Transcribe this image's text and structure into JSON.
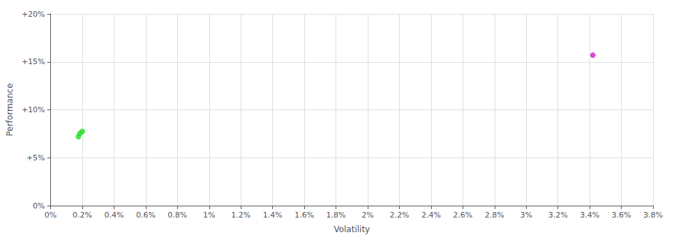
{
  "chart_data": {
    "type": "scatter",
    "xlabel": "Volatility",
    "ylabel": "Performance",
    "xlim": [
      0.0,
      0.038
    ],
    "ylim": [
      0.0,
      0.2
    ],
    "xticks": [
      {
        "value": 0.0,
        "label": "0%"
      },
      {
        "value": 0.002,
        "label": "0.2%"
      },
      {
        "value": 0.004,
        "label": "0.4%"
      },
      {
        "value": 0.006,
        "label": "0.6%"
      },
      {
        "value": 0.008,
        "label": "0.8%"
      },
      {
        "value": 0.01,
        "label": "1%"
      },
      {
        "value": 0.012,
        "label": "1.2%"
      },
      {
        "value": 0.014,
        "label": "1.4%"
      },
      {
        "value": 0.016,
        "label": "1.6%"
      },
      {
        "value": 0.018,
        "label": "1.8%"
      },
      {
        "value": 0.02,
        "label": "2%"
      },
      {
        "value": 0.022,
        "label": "2.2%"
      },
      {
        "value": 0.024,
        "label": "2.4%"
      },
      {
        "value": 0.026,
        "label": "2.6%"
      },
      {
        "value": 0.028,
        "label": "2.8%"
      },
      {
        "value": 0.03,
        "label": "3%"
      },
      {
        "value": 0.032,
        "label": "3.2%"
      },
      {
        "value": 0.034,
        "label": "3.4%"
      },
      {
        "value": 0.036,
        "label": "3.6%"
      },
      {
        "value": 0.038,
        "label": "3.8%"
      }
    ],
    "yticks": [
      {
        "value": 0.0,
        "label": "0%"
      },
      {
        "value": 0.05,
        "label": "+5%"
      },
      {
        "value": 0.1,
        "label": "+10%"
      },
      {
        "value": 0.15,
        "label": "+15%"
      },
      {
        "value": 0.2,
        "label": "+20%"
      }
    ],
    "grid": true,
    "series": [
      {
        "color": "#22dd22",
        "x": [
          0.00185,
          0.002,
          0.00175
        ],
        "values": [
          0.0755,
          0.0775,
          0.072
        ]
      },
      {
        "color": "#cc22cc",
        "x": [
          0.0342
        ],
        "values": [
          0.157
        ]
      }
    ]
  }
}
